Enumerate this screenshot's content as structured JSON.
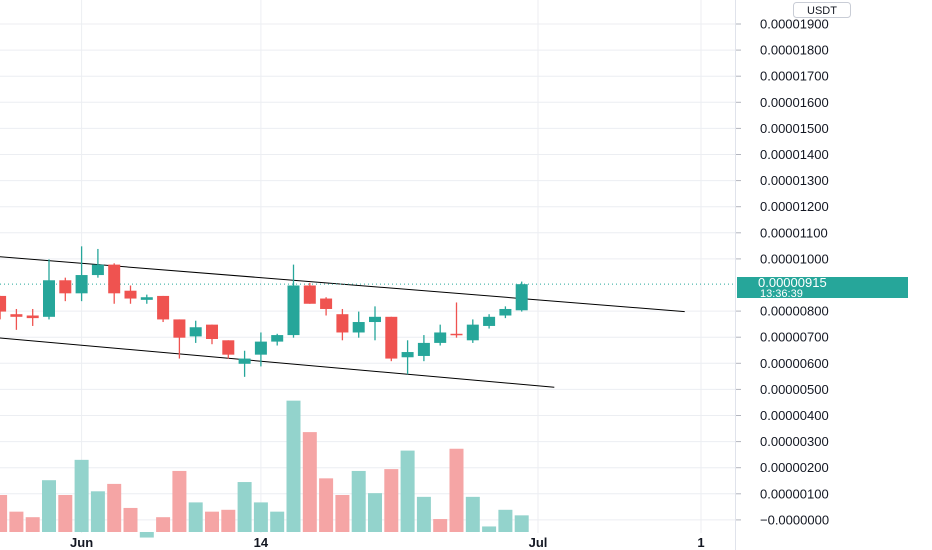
{
  "currency_label": "USDT",
  "colors": {
    "up": "#26a69a",
    "down": "#ef5350",
    "up_volume": "#93d3cc",
    "down_volume": "#f5a5a5",
    "grid": "#eceef2",
    "trendline": "#000000",
    "price_tag_bg": "#26a69a",
    "price_tag_text": "#ffffff",
    "axis_text": "#131722"
  },
  "current_price": {
    "value": "0.00000915",
    "countdown": "13:36:39"
  },
  "chart_data": {
    "type": "candlestick",
    "title": "",
    "xlabel": "",
    "ylabel": "",
    "ylim": [
      0,
      1.95e-05
    ],
    "grid": true,
    "x_ticks": [
      "Jun",
      "14",
      "Jul",
      "1"
    ],
    "y_ticks": [
      "0.00001900",
      "0.00001800",
      "0.00001700",
      "0.00001600",
      "0.00001500",
      "0.00001400",
      "0.00001300",
      "0.00001200",
      "0.00001100",
      "0.00001000",
      "0.00000800",
      "0.00000700",
      "0.00000600",
      "0.00000500",
      "0.00000400",
      "0.00000300",
      "0.00000200",
      "0.00000100",
      "−0.0000000"
    ],
    "candles": [
      {
        "date": "2023-05-29",
        "o": 8.7,
        "h": 8.7,
        "l": 7.8,
        "c": 8.1
      },
      {
        "date": "2023-05-30",
        "o": 8.0,
        "h": 8.2,
        "l": 7.4,
        "c": 7.9
      },
      {
        "date": "2023-05-31",
        "o": 7.95,
        "h": 8.2,
        "l": 7.55,
        "c": 7.85
      },
      {
        "date": "2023-06-01",
        "o": 7.9,
        "h": 10.1,
        "l": 7.8,
        "c": 9.3
      },
      {
        "date": "2023-06-02",
        "o": 9.3,
        "h": 9.4,
        "l": 8.5,
        "c": 8.8
      },
      {
        "date": "2023-06-03",
        "o": 8.8,
        "h": 10.6,
        "l": 8.5,
        "c": 9.5
      },
      {
        "date": "2023-06-04",
        "o": 9.5,
        "h": 10.5,
        "l": 9.4,
        "c": 9.9
      },
      {
        "date": "2023-06-05",
        "o": 9.9,
        "h": 9.95,
        "l": 8.4,
        "c": 8.8
      },
      {
        "date": "2023-06-06",
        "o": 8.9,
        "h": 9.1,
        "l": 8.4,
        "c": 8.6
      },
      {
        "date": "2023-06-07",
        "o": 8.55,
        "h": 8.75,
        "l": 8.4,
        "c": 8.65
      },
      {
        "date": "2023-06-08",
        "o": 8.7,
        "h": 8.7,
        "l": 7.7,
        "c": 7.8
      },
      {
        "date": "2023-06-09",
        "o": 7.8,
        "h": 7.8,
        "l": 6.3,
        "c": 7.1
      },
      {
        "date": "2023-06-10",
        "o": 7.15,
        "h": 7.75,
        "l": 6.9,
        "c": 7.5
      },
      {
        "date": "2023-06-11",
        "o": 7.6,
        "h": 7.6,
        "l": 6.85,
        "c": 7.05
      },
      {
        "date": "2023-06-12",
        "o": 7.0,
        "h": 7.0,
        "l": 6.3,
        "c": 6.45
      },
      {
        "date": "2023-06-13",
        "o": 6.1,
        "h": 6.6,
        "l": 5.6,
        "c": 6.3
      },
      {
        "date": "2023-06-14",
        "o": 6.45,
        "h": 7.3,
        "l": 6.0,
        "c": 6.95
      },
      {
        "date": "2023-06-15",
        "o": 6.95,
        "h": 7.25,
        "l": 6.8,
        "c": 7.2
      },
      {
        "date": "2023-06-16",
        "o": 7.2,
        "h": 9.9,
        "l": 7.1,
        "c": 9.1
      },
      {
        "date": "2023-06-17",
        "o": 9.1,
        "h": 9.2,
        "l": 8.4,
        "c": 8.4
      },
      {
        "date": "2023-06-18",
        "o": 8.6,
        "h": 8.65,
        "l": 7.95,
        "c": 8.2
      },
      {
        "date": "2023-06-19",
        "o": 8.0,
        "h": 8.2,
        "l": 7.0,
        "c": 7.3
      },
      {
        "date": "2023-06-20",
        "o": 7.3,
        "h": 8.1,
        "l": 7.1,
        "c": 7.7
      },
      {
        "date": "2023-06-21",
        "o": 7.7,
        "h": 8.3,
        "l": 7.0,
        "c": 7.9
      },
      {
        "date": "2023-06-22",
        "o": 7.9,
        "h": 7.9,
        "l": 6.2,
        "c": 6.3
      },
      {
        "date": "2023-06-23",
        "o": 6.35,
        "h": 7.0,
        "l": 5.7,
        "c": 6.55
      },
      {
        "date": "2023-06-24",
        "o": 6.4,
        "h": 7.2,
        "l": 6.2,
        "c": 6.9
      },
      {
        "date": "2023-06-25",
        "o": 6.9,
        "h": 7.6,
        "l": 6.8,
        "c": 7.3
      },
      {
        "date": "2023-06-26",
        "o": 7.25,
        "h": 8.45,
        "l": 7.1,
        "c": 7.2
      },
      {
        "date": "2023-06-27",
        "o": 7.0,
        "h": 7.8,
        "l": 6.9,
        "c": 7.6
      },
      {
        "date": "2023-06-28",
        "o": 7.55,
        "h": 8.0,
        "l": 7.45,
        "c": 7.9
      },
      {
        "date": "2023-06-29",
        "o": 7.95,
        "h": 8.3,
        "l": 7.85,
        "c": 8.2
      },
      {
        "date": "2023-06-30",
        "o": 8.15,
        "h": 9.25,
        "l": 8.1,
        "c": 9.15
      }
    ],
    "volume": [
      {
        "date": "2023-05-29",
        "v": 1.0,
        "up": false
      },
      {
        "date": "2023-05-30",
        "v": 0.55,
        "up": false
      },
      {
        "date": "2023-05-31",
        "v": 0.4,
        "up": false
      },
      {
        "date": "2023-06-01",
        "v": 1.4,
        "up": true
      },
      {
        "date": "2023-06-02",
        "v": 1.0,
        "up": false
      },
      {
        "date": "2023-06-03",
        "v": 1.95,
        "up": true
      },
      {
        "date": "2023-06-04",
        "v": 1.1,
        "up": true
      },
      {
        "date": "2023-06-05",
        "v": 1.3,
        "up": false
      },
      {
        "date": "2023-06-06",
        "v": 0.65,
        "up": false
      },
      {
        "date": "2023-06-07",
        "v": -0.15,
        "up": true
      },
      {
        "date": "2023-06-08",
        "v": 0.4,
        "up": false
      },
      {
        "date": "2023-06-09",
        "v": 1.65,
        "up": false
      },
      {
        "date": "2023-06-10",
        "v": 0.8,
        "up": true
      },
      {
        "date": "2023-06-11",
        "v": 0.55,
        "up": false
      },
      {
        "date": "2023-06-12",
        "v": 0.6,
        "up": false
      },
      {
        "date": "2023-06-13",
        "v": 1.35,
        "up": true
      },
      {
        "date": "2023-06-14",
        "v": 0.8,
        "up": true
      },
      {
        "date": "2023-06-15",
        "v": 0.55,
        "up": true
      },
      {
        "date": "2023-06-16",
        "v": 3.55,
        "up": true
      },
      {
        "date": "2023-06-17",
        "v": 2.7,
        "up": false
      },
      {
        "date": "2023-06-18",
        "v": 1.45,
        "up": false
      },
      {
        "date": "2023-06-19",
        "v": 1.0,
        "up": false
      },
      {
        "date": "2023-06-20",
        "v": 1.65,
        "up": true
      },
      {
        "date": "2023-06-21",
        "v": 1.05,
        "up": true
      },
      {
        "date": "2023-06-22",
        "v": 1.7,
        "up": false
      },
      {
        "date": "2023-06-23",
        "v": 2.2,
        "up": true
      },
      {
        "date": "2023-06-24",
        "v": 0.95,
        "up": true
      },
      {
        "date": "2023-06-25",
        "v": 0.35,
        "up": false
      },
      {
        "date": "2023-06-26",
        "v": 2.25,
        "up": false
      },
      {
        "date": "2023-06-27",
        "v": 0.95,
        "up": true
      },
      {
        "date": "2023-06-28",
        "v": 0.15,
        "up": true
      },
      {
        "date": "2023-06-29",
        "v": 0.6,
        "up": true
      },
      {
        "date": "2023-06-30",
        "v": 0.45,
        "up": true
      }
    ],
    "trendlines": [
      {
        "start": {
          "date": "2023-05-27",
          "price": 10.3
        },
        "end": {
          "date": "2023-07-10",
          "price": 8.1
        }
      },
      {
        "start": {
          "date": "2023-05-27",
          "price": 7.2
        },
        "end": {
          "date": "2023-07-02",
          "price": 5.2
        }
      }
    ]
  }
}
